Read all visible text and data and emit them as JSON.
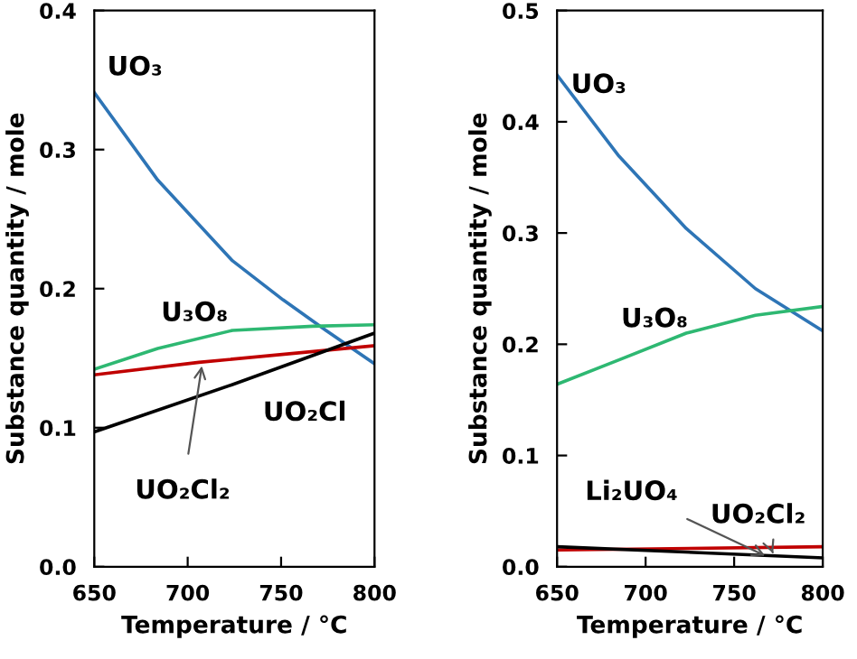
{
  "chart_data": [
    {
      "type": "line",
      "xlabel": "Temperature / °C",
      "ylabel": "Substance quantity / mole",
      "xlim": [
        650,
        800
      ],
      "ylim": [
        0,
        0.4
      ],
      "xticks": [
        650,
        700,
        750,
        800
      ],
      "yticks": [
        {
          "value": 0,
          "label": "0.0"
        },
        0.1,
        0.2,
        0.3,
        0.4
      ],
      "grid": false,
      "legend": false,
      "series": [
        {
          "color": "#2e75b6",
          "x": [
            650,
            684,
            724,
            751,
            774,
            800
          ],
          "values": [
            0.341,
            0.278,
            0.22,
            0.192,
            0.17,
            0.146
          ]
        },
        {
          "color": "#2eb872",
          "x": [
            650,
            684,
            724,
            767,
            800
          ],
          "values": [
            0.142,
            0.157,
            0.17,
            0.173,
            0.174
          ]
        },
        {
          "color": "#c00000",
          "x": [
            650,
            706,
            800
          ],
          "values": [
            0.138,
            0.147,
            0.159
          ]
        },
        {
          "color": "#000000",
          "x": [
            650,
            724,
            800
          ],
          "values": [
            0.097,
            0.131,
            0.168
          ]
        }
      ],
      "annotations": [
        {
          "text": "UO₃",
          "x": 665,
          "y": 0.31
        },
        {
          "text": "U₃O₈",
          "x": 705,
          "y": 0.164
        },
        {
          "text": "UO₂Cl",
          "x": 760,
          "y": 0.15
        },
        {
          "text": "UO₂Cl₂",
          "x": 708,
          "y": 0.148
        }
      ]
    },
    {
      "type": "line",
      "xlabel": "Temperature / °C",
      "ylabel": "Substance quantity / mole",
      "xlim": [
        650,
        800
      ],
      "ylim": [
        0,
        0.5
      ],
      "xticks": [
        650,
        700,
        750,
        800
      ],
      "yticks": [
        {
          "value": 0,
          "label": "0.0"
        },
        0.1,
        0.2,
        0.3,
        0.4,
        0.5
      ],
      "grid": false,
      "legend": false,
      "series": [
        {
          "color": "#2e75b6",
          "x": [
            650,
            685,
            723,
            762,
            800
          ],
          "values": [
            0.442,
            0.369,
            0.304,
            0.25,
            0.212
          ]
        },
        {
          "color": "#2eb872",
          "x": [
            650,
            685,
            723,
            762,
            800
          ],
          "values": [
            0.164,
            0.186,
            0.21,
            0.226,
            0.234
          ]
        },
        {
          "color": "#c00000",
          "x": [
            650,
            800
          ],
          "values": [
            0.015,
            0.018
          ]
        },
        {
          "color": "#000000",
          "x": [
            650,
            800
          ],
          "values": [
            0.018,
            0.008
          ]
        }
      ],
      "annotations": [
        {
          "text": "UO₃",
          "x": 665,
          "y": 0.41
        },
        {
          "text": "U₃O₈",
          "x": 705,
          "y": 0.195
        },
        {
          "text": "Li₂UO₄",
          "x": 770,
          "y": 0.008
        },
        {
          "text": "UO₂Cl₂",
          "x": 772,
          "y": 0.012
        }
      ]
    }
  ]
}
